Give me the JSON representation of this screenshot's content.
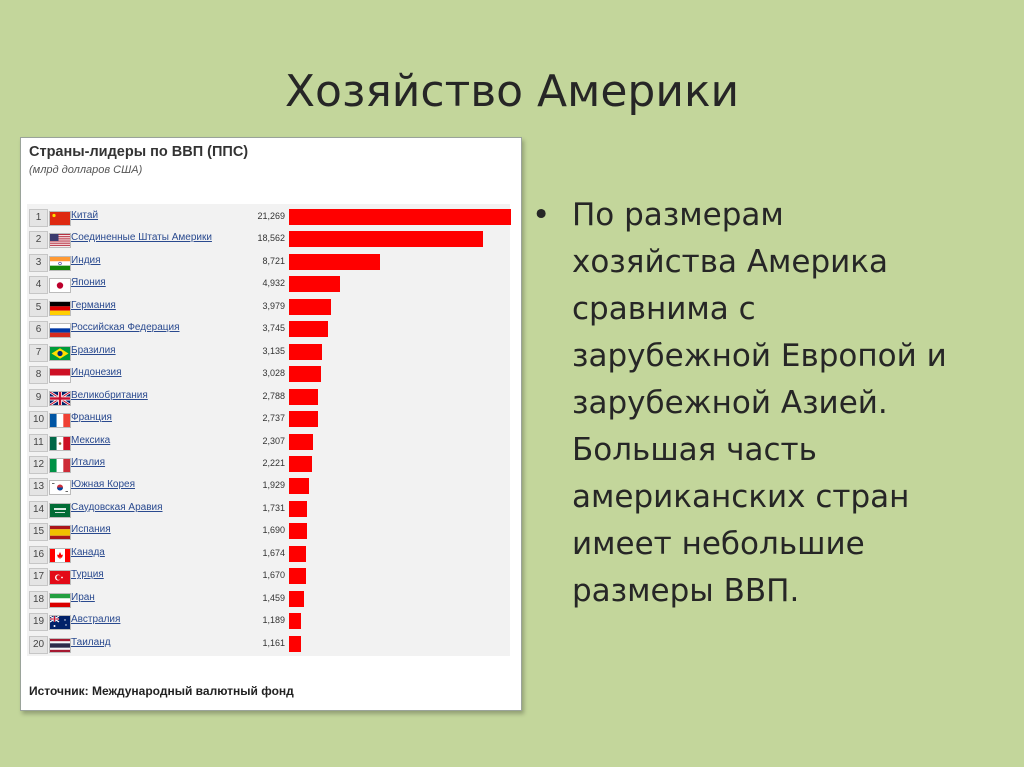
{
  "slide": {
    "title": "Хозяйство Америки",
    "bullet_symbol": "•",
    "bullet_lines": [
      "По размерам",
      "хозяйства Америка",
      "сравнима с",
      "зарубежной Европой и",
      "зарубежной Азией.",
      "Большая часть",
      "американских стран",
      "имеет небольшие",
      "размеры ВВП."
    ]
  },
  "chart_data": {
    "type": "bar",
    "orientation": "horizontal",
    "title": "Страны-лидеры по ВВП (ППС)",
    "subtitle": "(млрд долларов США)",
    "source": "Источник: Международный валютный фонд",
    "bar_color": "#ff0000",
    "xlim": [
      0,
      21.269
    ],
    "ranks": [
      "1",
      "2",
      "3",
      "4",
      "5",
      "6",
      "7",
      "8",
      "9",
      "10",
      "11",
      "12",
      "13",
      "14",
      "15",
      "16",
      "17",
      "18",
      "19",
      "20"
    ],
    "categories": [
      "Китай",
      "Соединенные Штаты Америки",
      "Индия",
      "Япония",
      "Германия",
      "Российская Федерация",
      "Бразилия",
      "Индонезия",
      "Великобритания",
      "Франция",
      "Мексика",
      "Италия",
      "Южная Корея",
      "Саудовская Аравия",
      "Испания",
      "Канада",
      "Турция",
      "Иран",
      "Австралия",
      "Таиланд"
    ],
    "value_labels": [
      "21,269",
      "18,562",
      "8,721",
      "4,932",
      "3,979",
      "3,745",
      "3,135",
      "3,028",
      "2,788",
      "2,737",
      "2,307",
      "2,221",
      "1,929",
      "1,731",
      "1,690",
      "1,674",
      "1,670",
      "1,459",
      "1,189",
      "1,161"
    ],
    "values": [
      21.269,
      18.562,
      8.721,
      4.932,
      3.979,
      3.745,
      3.135,
      3.028,
      2.788,
      2.737,
      2.307,
      2.221,
      1.929,
      1.731,
      1.69,
      1.674,
      1.67,
      1.459,
      1.189,
      1.161
    ],
    "flag_icons": [
      "china-flag-icon",
      "usa-flag-icon",
      "india-flag-icon",
      "japan-flag-icon",
      "germany-flag-icon",
      "russia-flag-icon",
      "brazil-flag-icon",
      "indonesia-flag-icon",
      "uk-flag-icon",
      "france-flag-icon",
      "mexico-flag-icon",
      "italy-flag-icon",
      "south-korea-flag-icon",
      "saudi-arabia-flag-icon",
      "spain-flag-icon",
      "canada-flag-icon",
      "turkey-flag-icon",
      "iran-flag-icon",
      "australia-flag-icon",
      "thailand-flag-icon"
    ]
  }
}
